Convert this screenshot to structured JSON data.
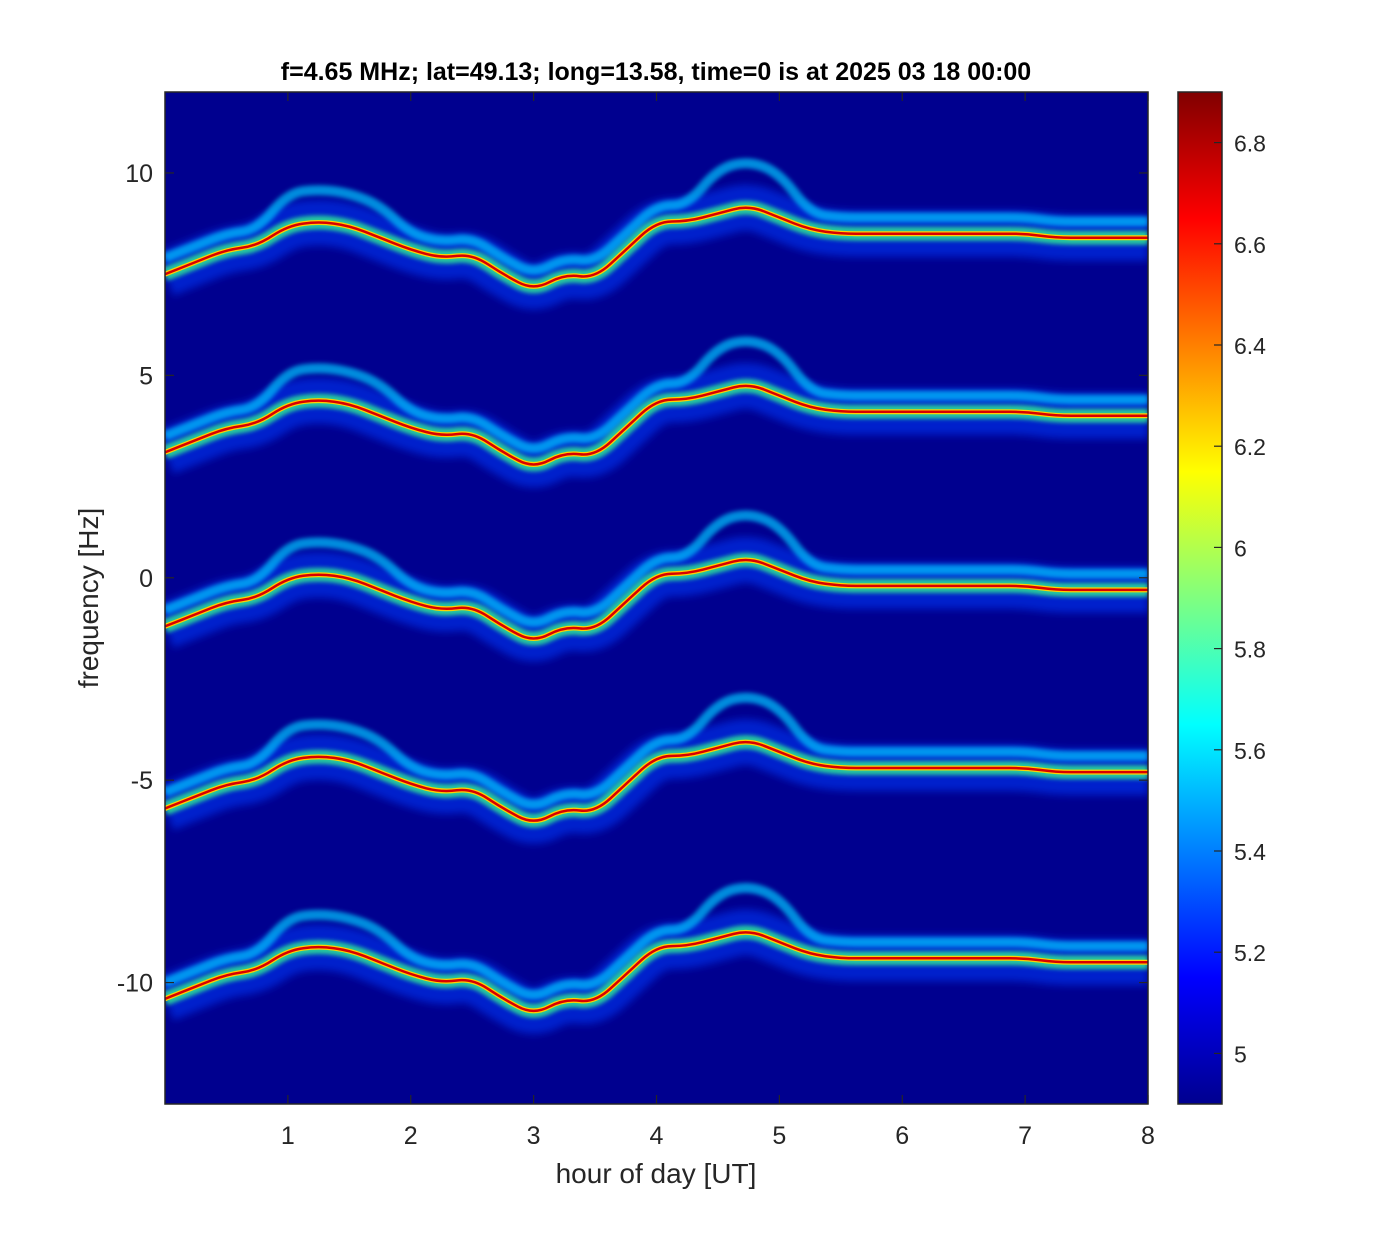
{
  "chart_data": {
    "type": "heatmap",
    "title": "f=4.65 MHz;  lat=49.13; long=13.58, time=0 is at 2025 03 18 00:00",
    "xlabel": "hour of day [UT]",
    "ylabel": "frequency [Hz]",
    "xlim": [
      0,
      8
    ],
    "ylim": [
      -13,
      12
    ],
    "x_ticks": [
      1,
      2,
      3,
      4,
      5,
      6,
      7,
      8
    ],
    "y_ticks": [
      -10,
      -5,
      0,
      5,
      10
    ],
    "colorbar": {
      "clim": [
        4.9,
        6.9
      ],
      "ticks": [
        5,
        5.2,
        5.4,
        5.6,
        5.8,
        6,
        6.2,
        6.4,
        6.6,
        6.8
      ],
      "colormap": "jet",
      "placement": "right"
    },
    "background_color": "#00008f",
    "band_offsets_hz": [
      8.7,
      4.3,
      0,
      -4.5,
      -9.2
    ],
    "series": [
      {
        "x": [
          0.0,
          0.25,
          0.5,
          0.75,
          1.0,
          1.25,
          1.5,
          1.75,
          2.0,
          2.25,
          2.5,
          2.75,
          3.0,
          3.25,
          3.5,
          3.75,
          4.0,
          4.25,
          4.5,
          4.75,
          5.0,
          5.25,
          5.5,
          5.75,
          6.0,
          6.25,
          6.5,
          6.75,
          7.0,
          7.25,
          7.5,
          7.75,
          8.0
        ],
        "values": [
          -1.2,
          -0.9,
          -0.6,
          -0.5,
          0.0,
          0.1,
          0.0,
          -0.3,
          -0.6,
          -0.8,
          -0.7,
          -1.2,
          -1.6,
          -1.2,
          -1.3,
          -0.6,
          0.1,
          0.1,
          0.3,
          0.5,
          0.2,
          -0.1,
          -0.2,
          -0.2,
          -0.2,
          -0.2,
          -0.2,
          -0.2,
          -0.2,
          -0.3,
          -0.3,
          -0.3,
          -0.3
        ]
      }
    ]
  }
}
